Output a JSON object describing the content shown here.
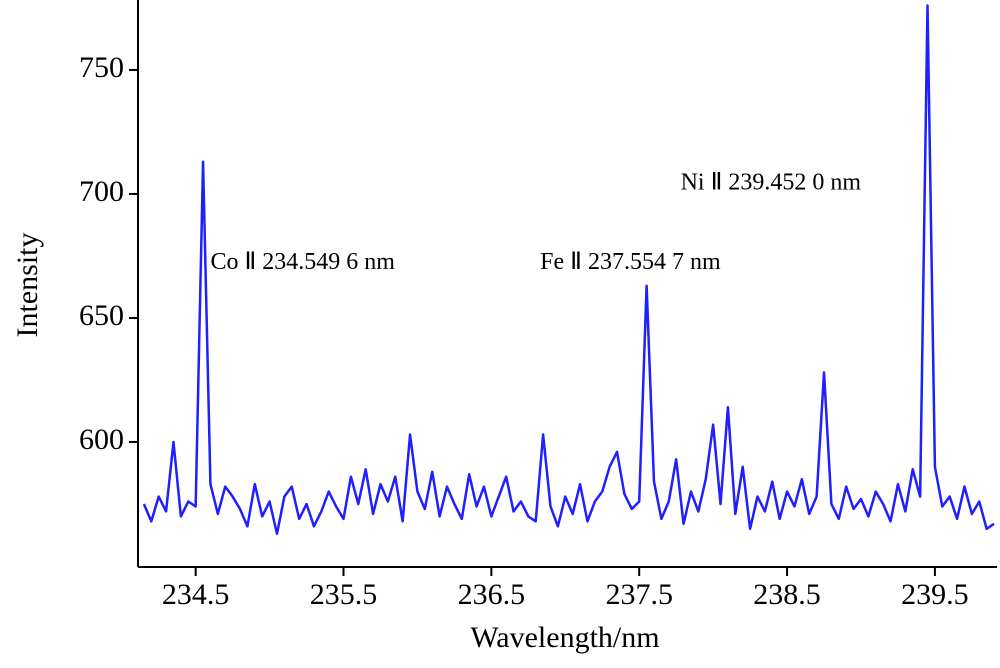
{
  "chart_data": {
    "type": "line",
    "xlabel": "Wavelength/nm",
    "ylabel": "Intensity",
    "annotations": [
      {
        "text": "Co Ⅱ 234.549 6 nm",
        "x": 234.6,
        "y": 672
      },
      {
        "text": "Fe Ⅱ 237.554 7 nm",
        "x": 236.83,
        "y": 672
      },
      {
        "text": "Ni Ⅱ 239.452 0 nm",
        "x": 237.78,
        "y": 704
      }
    ],
    "color": "#1f1fff",
    "x": [
      234.15,
      234.2,
      234.25,
      234.3,
      234.35,
      234.4,
      234.45,
      234.5,
      234.55,
      234.6,
      234.65,
      234.7,
      234.75,
      234.8,
      234.85,
      234.9,
      234.95,
      235.0,
      235.05,
      235.1,
      235.15,
      235.2,
      235.25,
      235.3,
      235.35,
      235.4,
      235.45,
      235.5,
      235.55,
      235.6,
      235.65,
      235.7,
      235.75,
      235.8,
      235.85,
      235.9,
      235.95,
      236.0,
      236.05,
      236.1,
      236.15,
      236.2,
      236.25,
      236.3,
      236.35,
      236.4,
      236.45,
      236.5,
      236.55,
      236.6,
      236.65,
      236.7,
      236.75,
      236.8,
      236.85,
      236.9,
      236.95,
      237.0,
      237.05,
      237.1,
      237.15,
      237.2,
      237.25,
      237.3,
      237.35,
      237.4,
      237.45,
      237.5,
      237.55,
      237.6,
      237.65,
      237.7,
      237.75,
      237.8,
      237.85,
      237.9,
      237.95,
      238.0,
      238.05,
      238.1,
      238.15,
      238.2,
      238.25,
      238.3,
      238.35,
      238.4,
      238.45,
      238.5,
      238.55,
      238.6,
      238.65,
      238.7,
      238.75,
      238.8,
      238.85,
      238.9,
      238.95,
      239.0,
      239.05,
      239.1,
      239.15,
      239.2,
      239.25,
      239.3,
      239.35,
      239.4,
      239.45,
      239.5,
      239.55,
      239.6,
      239.65,
      239.7,
      239.75,
      239.8,
      239.85,
      239.9
    ],
    "values": [
      575,
      568,
      578,
      572,
      600,
      570,
      576,
      574,
      713,
      583,
      571,
      582,
      578,
      573,
      566,
      583,
      570,
      576,
      563,
      578,
      582,
      569,
      575,
      566,
      572,
      580,
      574,
      569,
      586,
      575,
      589,
      571,
      583,
      576,
      586,
      568,
      603,
      580,
      573,
      588,
      570,
      582,
      575,
      569,
      587,
      574,
      582,
      570,
      578,
      586,
      572,
      576,
      570,
      568,
      603,
      574,
      566,
      578,
      571,
      583,
      568,
      576,
      580,
      590,
      596,
      579,
      573,
      576,
      663,
      584,
      569,
      576,
      593,
      567,
      580,
      572,
      585,
      607,
      575,
      614,
      571,
      590,
      565,
      578,
      572,
      584,
      569,
      580,
      574,
      585,
      571,
      578,
      628,
      575,
      569,
      582,
      573,
      577,
      570,
      580,
      575,
      568,
      583,
      572,
      589,
      578,
      776,
      590,
      574,
      578,
      569,
      582,
      571,
      576,
      565,
      567
    ],
    "xlim": [
      234.11,
      239.92
    ],
    "ylim": [
      549.6,
      778.2
    ],
    "xticks": [
      234.5,
      235.5,
      236.5,
      237.5,
      238.5,
      239.5
    ],
    "yticks": [
      600,
      650,
      700,
      750
    ]
  }
}
